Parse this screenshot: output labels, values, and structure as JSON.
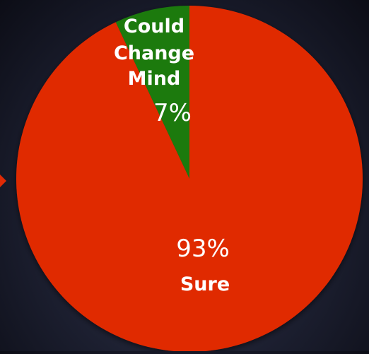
{
  "chart_data": {
    "type": "pie",
    "slices": [
      {
        "label": "Could Change Mind",
        "label_lines": [
          "Could",
          "Change",
          "Mind"
        ],
        "value": 7,
        "value_label": "7%",
        "color": "#1a7a10"
      },
      {
        "label": "Sure",
        "label_lines": [
          "Sure"
        ],
        "value": 93,
        "value_label": "93%",
        "color": "#e02a05"
      }
    ],
    "title": "",
    "legend": "none"
  },
  "colors": {
    "pointer": "#e02a05"
  }
}
